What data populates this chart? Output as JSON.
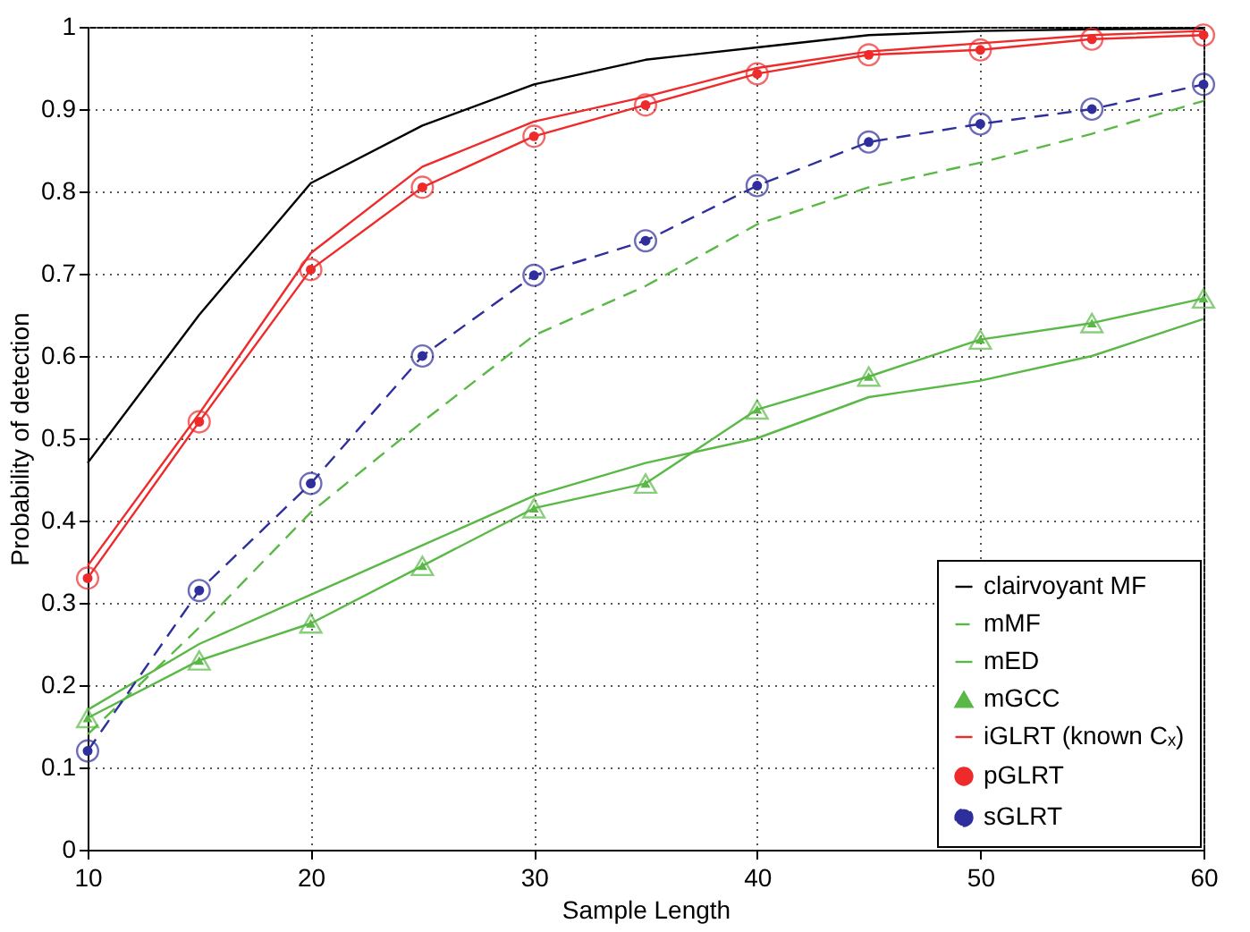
{
  "chart_data": {
    "type": "line",
    "xlabel": "Sample Length",
    "ylabel": "Probability of detection",
    "x": [
      10,
      15,
      20,
      25,
      30,
      35,
      40,
      45,
      50,
      55,
      60
    ],
    "xlim": [
      10,
      60
    ],
    "xticks": [
      10,
      20,
      30,
      40,
      50,
      60
    ],
    "ylim": [
      0,
      1
    ],
    "yticks": [
      0,
      0.1,
      0.2,
      0.3,
      0.4,
      0.5,
      0.6,
      0.7,
      0.8,
      0.9,
      1
    ],
    "grid": true,
    "legend": "bottom right",
    "series": [
      {
        "name": "clairvoyant MF",
        "color": "#000000",
        "line_style": "solid",
        "marker": "none",
        "values": [
          0.47,
          0.65,
          0.81,
          0.88,
          0.93,
          0.96,
          0.975,
          0.99,
          0.995,
          0.997,
          0.998
        ]
      },
      {
        "name": "mMF",
        "color": "#5ab946",
        "line_style": "dashed",
        "marker": "none",
        "values": [
          0.14,
          0.27,
          0.41,
          0.52,
          0.625,
          0.685,
          0.76,
          0.805,
          0.835,
          0.87,
          0.91
        ]
      },
      {
        "name": "mED",
        "color": "#5ab946",
        "line_style": "solid",
        "marker": "none",
        "values": [
          0.17,
          0.25,
          0.31,
          0.37,
          0.43,
          0.47,
          0.5,
          0.55,
          0.57,
          0.6,
          0.645
        ]
      },
      {
        "name": "mGCC",
        "color": "#5ab946",
        "line_style": "solid",
        "marker": "triangle",
        "values": [
          0.16,
          0.23,
          0.275,
          0.345,
          0.415,
          0.445,
          0.535,
          0.575,
          0.62,
          0.64,
          0.67
        ]
      },
      {
        "name": "iGLRT (known Cₓ)",
        "color": "#ee2a2a",
        "line_style": "solid",
        "marker": "none",
        "values": [
          0.345,
          0.53,
          0.725,
          0.83,
          0.885,
          0.915,
          0.95,
          0.97,
          0.98,
          0.99,
          0.995
        ]
      },
      {
        "name": "pGLRT",
        "color": "#ee2a2a",
        "line_style": "solid",
        "marker": "circle",
        "values": [
          0.33,
          0.52,
          0.705,
          0.805,
          0.867,
          0.905,
          0.943,
          0.966,
          0.972,
          0.985,
          0.99
        ]
      },
      {
        "name": "sGLRT",
        "color": "#2e2e9c",
        "line_style": "dashed",
        "marker": "circle",
        "values": [
          0.12,
          0.315,
          0.445,
          0.6,
          0.698,
          0.74,
          0.807,
          0.86,
          0.882,
          0.9,
          0.93
        ]
      }
    ]
  }
}
